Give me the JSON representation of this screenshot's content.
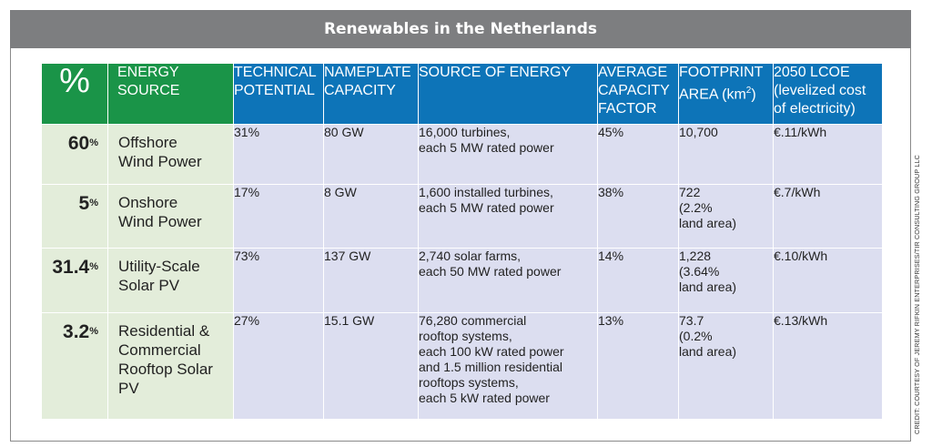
{
  "title": "Renewables in the Netherlands",
  "credit": "CREDIT: COURTESY OF JEREMY RIFKIN ENTERPRISES/TIR CONSULTING GROUP LLC",
  "colors": {
    "header_green": "#1a9448",
    "header_blue": "#0d74b8",
    "row_green": "#e3edda",
    "row_blue": "#dcdef0",
    "title_bg": "#7d7e80"
  },
  "headers": {
    "pct": "%",
    "source": "ENERGY SOURCE",
    "tech": "TECHNICAL\nPOTENTIAL",
    "nameplate": "NAMEPLATE\nCAPACITY",
    "energy": "SOURCE OF ENERGY",
    "avgcap": "AVERAGE\nCAPACITY\nFACTOR",
    "footprint": "FOOTPRINT\nAREA (km",
    "footprint_sup": "2",
    "footprint_end": ")",
    "lcoe": "2050 LCOE\n(levelized cost\nof electricity)"
  },
  "rows": [
    {
      "pct": "60",
      "pct_sign": "%",
      "source": "Offshore\nWind Power",
      "tech": "31%",
      "nameplate": "80 GW",
      "energy": "16,000 turbines,\neach 5 MW rated power",
      "avgcap": "45%",
      "footprint": "10,700",
      "lcoe": "€.11/kWh"
    },
    {
      "pct": "5",
      "pct_sign": "%",
      "source": "Onshore\nWind Power",
      "tech": "17%",
      "nameplate": "8 GW",
      "energy": "1,600 installed turbines,\neach 5 MW rated power",
      "avgcap": "38%",
      "footprint": "722\n(2.2%\nland area)",
      "lcoe": "€.7/kWh"
    },
    {
      "pct": "31.4",
      "pct_sign": "%",
      "source": "Utility-Scale\nSolar PV",
      "tech": "73%",
      "nameplate": "137 GW",
      "energy": "2,740 solar farms,\neach 50 MW rated power",
      "avgcap": "14%",
      "footprint": "1,228\n(3.64%\nland area)",
      "lcoe": "€.10/kWh"
    },
    {
      "pct": "3.2",
      "pct_sign": "%",
      "source": "Residential &\nCommercial\nRooftop Solar PV",
      "tech": "27%",
      "nameplate": "15.1 GW",
      "energy": "76,280 commercial\nrooftop systems,\neach 100 kW rated power\nand 1.5 million residential\nrooftops systems,\neach 5 kW rated power",
      "avgcap": "13%",
      "footprint": "73.7\n(0.2%\nland area)",
      "lcoe": "€.13/kWh"
    }
  ]
}
